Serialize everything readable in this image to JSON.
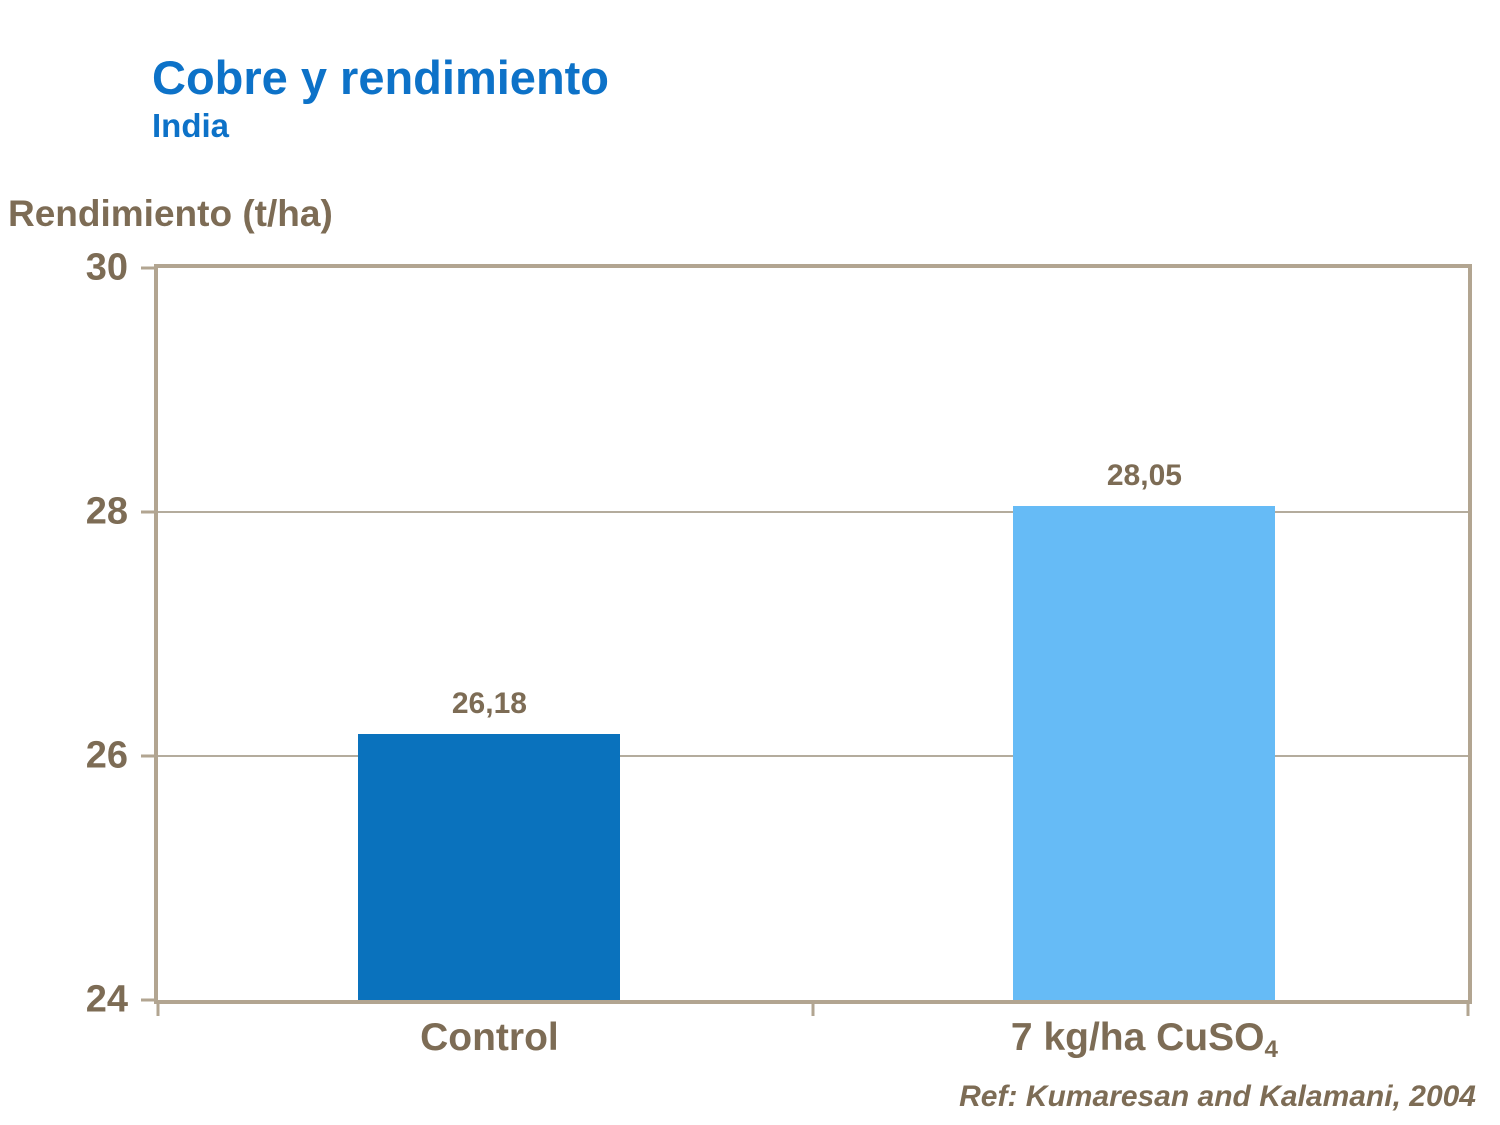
{
  "header": {
    "title": "Cobre y rendimiento",
    "subtitle": "India"
  },
  "axis": {
    "y_title": "Rendimiento (t/ha)"
  },
  "footnote": {
    "ref": "Ref: Kumaresan and Kalamani, 2004"
  },
  "colors": {
    "title_blue": "#0d72c8",
    "text_brown": "#7d6c55",
    "axis_frame_tan": "#b2a591",
    "gridline_tan": "#b4ac9d",
    "bar_control_blue": "#0a72bd",
    "bar_cuso4_light_blue": "#66bbf6"
  },
  "chart_data": {
    "type": "bar",
    "title": "Cobre y rendimiento",
    "subtitle": "India",
    "categories": [
      "Control",
      "7 kg/ha CuSO₄"
    ],
    "values": [
      26.18,
      28.05
    ],
    "value_labels": [
      "26,18",
      "28,05"
    ],
    "cat2_main": "7 kg/ha CuSO",
    "cat2_sub": "4",
    "xlabel": "",
    "ylabel": "Rendimiento (t/ha)",
    "ylim": [
      24,
      30
    ],
    "yticks": [
      24,
      26,
      28,
      30
    ],
    "grid": "horizontal gridlines at 26 and 28",
    "legend": "none",
    "bar_colors": [
      "#0a72bd",
      "#66bbf6"
    ],
    "annotation": "Ref: Kumaresan and Kalamani, 2004"
  }
}
